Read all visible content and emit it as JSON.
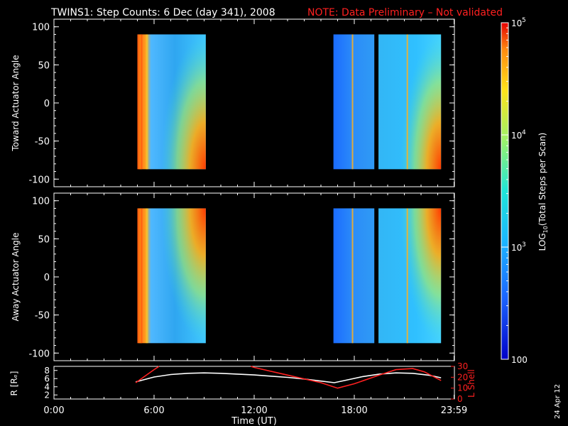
{
  "header": {
    "title": "TWINS1: Step Counts:  6 Dec (day 341), 2008",
    "note": "NOTE: Data Preliminary – Not validated"
  },
  "footer": {
    "stamp": "24 Apr 12"
  },
  "colors": {
    "background": "#000000",
    "foreground": "#ffffff",
    "note": "#ff2020",
    "l_shell": "#ff2020",
    "r_earth": "#ffffff"
  },
  "chart_data": [
    {
      "type": "heatmap",
      "id": "top",
      "ylabel": "Toward Actuator Angle",
      "ylim": [
        -110,
        110
      ],
      "yticks": [
        100,
        50,
        0,
        -50,
        -100
      ],
      "xlim_hours": [
        0,
        24
      ],
      "data_blocks_hours": [
        [
          5.0,
          9.1
        ],
        [
          16.75,
          19.2
        ],
        [
          19.45,
          23.2
        ]
      ],
      "angle_range": [
        -87,
        90
      ],
      "color_scale": "log"
    },
    {
      "type": "heatmap",
      "id": "bottom",
      "ylabel": "Away Actuator Angle",
      "ylim": [
        -110,
        110
      ],
      "yticks": [
        100,
        50,
        0,
        -50,
        -100
      ],
      "xlim_hours": [
        0,
        24
      ],
      "data_blocks_hours": [
        [
          5.0,
          9.1
        ],
        [
          16.75,
          19.2
        ],
        [
          19.45,
          23.2
        ]
      ],
      "angle_range": [
        -87,
        90
      ],
      "color_scale": "log"
    },
    {
      "type": "line",
      "id": "orbit",
      "ylabel": "R [Rₑ]",
      "ylabel_right": "L Shell",
      "ylim_left": [
        1,
        9
      ],
      "yticks_left": [
        2,
        4,
        6,
        8
      ],
      "ylim_right": [
        0,
        30
      ],
      "yticks_right": [
        0,
        10,
        20,
        30
      ],
      "xlabel": "Time (UT)",
      "xtick_labels": [
        "0:00",
        "6:00",
        "12:00",
        "18:00",
        "23:59"
      ],
      "xtick_hours": [
        0,
        6,
        12,
        18,
        23.98
      ],
      "series": [
        {
          "name": "R",
          "axis": "left",
          "color": "#ffffff",
          "x": [
            4.9,
            6.0,
            7.0,
            8.0,
            9.0,
            10.0,
            11.0,
            12.0,
            13.0,
            14.0,
            15.0,
            16.0,
            16.8,
            17.5,
            18.5,
            19.5,
            20.5,
            21.5,
            22.5,
            23.2
          ],
          "y": [
            5.2,
            6.4,
            7.0,
            7.3,
            7.4,
            7.3,
            7.1,
            6.9,
            6.6,
            6.3,
            5.9,
            5.4,
            5.0,
            5.6,
            6.5,
            7.1,
            7.4,
            7.3,
            6.8,
            6.2
          ]
        },
        {
          "name": "L Shell",
          "axis": "right",
          "segments": [
            {
              "x": [
                4.9,
                6.0,
                6.3
              ],
              "y": [
                15,
                27,
                30
              ]
            },
            {
              "x": [
                11.8,
                12.0,
                14.0,
                16.0,
                17.0,
                18.0,
                19.5,
                20.5,
                21.5,
                22.2,
                23.2
              ],
              "y": [
                30,
                29,
                22,
                15,
                10,
                14,
                22,
                27,
                28,
                25,
                17
              ]
            }
          ]
        }
      ]
    }
  ],
  "colorbar": {
    "label": "LOG10(Total Steps per Scan)",
    "label_main": "LOG",
    "label_sub": "10",
    "label_rest": "(Total Steps per Scan)",
    "scale": "log",
    "range": [
      100,
      100000
    ],
    "ticks": [
      {
        "value": 100000,
        "base": "10",
        "exp": "5"
      },
      {
        "value": 10000,
        "base": "10",
        "exp": "4"
      },
      {
        "value": 1000,
        "base": "10",
        "exp": "3"
      },
      {
        "value": 100,
        "base": "100",
        "exp": ""
      }
    ]
  }
}
